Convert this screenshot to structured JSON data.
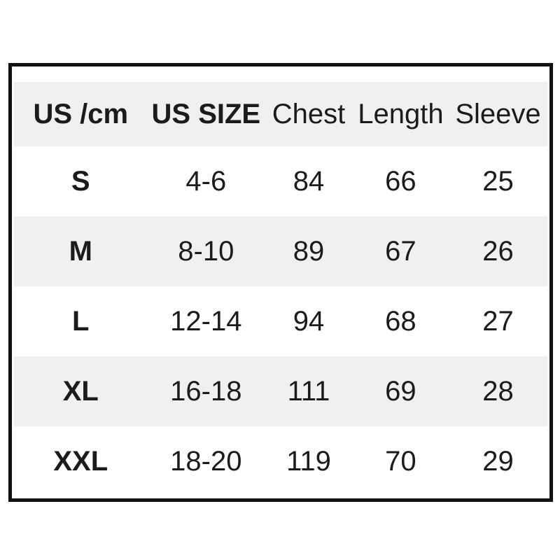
{
  "chart_data": {
    "type": "table",
    "columns": [
      "US /cm",
      "US SIZE",
      "Chest",
      "Length",
      "Sleeve"
    ],
    "rows": [
      [
        "S",
        "4-6",
        84,
        66,
        25
      ],
      [
        "M",
        "8-10",
        89,
        67,
        26
      ],
      [
        "L",
        "12-14",
        94,
        68,
        27
      ],
      [
        "XL",
        "16-18",
        111,
        69,
        28
      ],
      [
        "XXL",
        "18-20",
        119,
        70,
        29
      ]
    ],
    "title": "",
    "layout": "alternating row shading, thick black outer border, no inner gridlines"
  },
  "table": {
    "header": {
      "cells": [
        "US /cm",
        "US SIZE",
        "Chest",
        "Length",
        "Sleeve"
      ]
    },
    "rows": [
      {
        "cells": [
          "S",
          "4-6",
          "84",
          "66",
          "25"
        ]
      },
      {
        "cells": [
          "M",
          "8-10",
          "89",
          "67",
          "26"
        ]
      },
      {
        "cells": [
          "L",
          "12-14",
          "94",
          "68",
          "27"
        ]
      },
      {
        "cells": [
          "XL",
          "16-18",
          "111",
          "69",
          "28"
        ]
      },
      {
        "cells": [
          "XXL",
          "18-20",
          "119",
          "70",
          "29"
        ]
      }
    ]
  },
  "colors": {
    "row_shade": "#f1f0ee",
    "border": "#111111",
    "text": "#1b1b1b",
    "background": "#ffffff"
  }
}
